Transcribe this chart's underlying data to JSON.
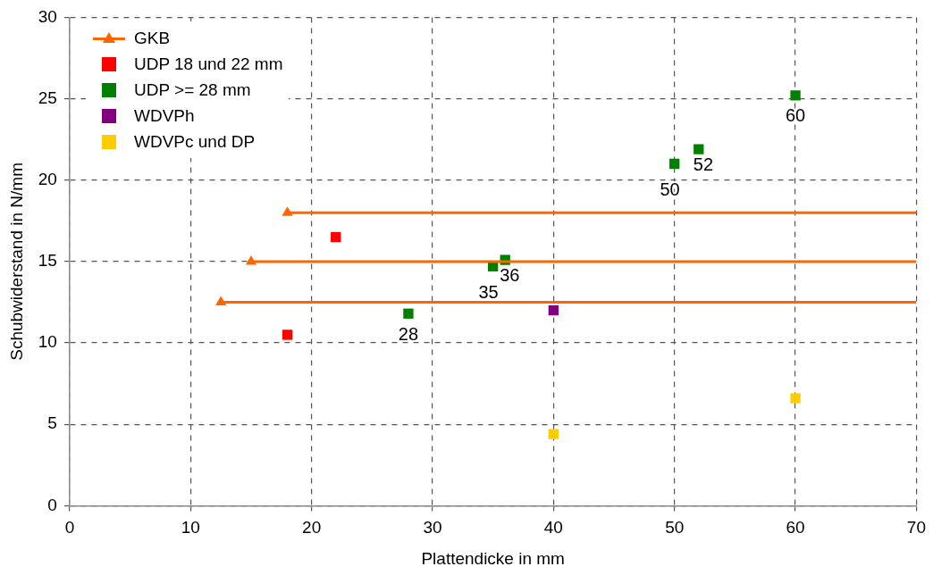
{
  "chart_data": {
    "type": "scatter",
    "xlabel": "Plattendicke in mm",
    "ylabel": "Schubwiderstand in N/mm",
    "xlim": [
      0,
      70
    ],
    "xticks": [
      0,
      10,
      20,
      30,
      40,
      50,
      60,
      70
    ],
    "ylim": [
      0,
      30
    ],
    "yticks": [
      0,
      5,
      10,
      15,
      20,
      25,
      30
    ],
    "grid": true,
    "legend": "top left",
    "annotations": [
      {
        "text": "28",
        "x": 28,
        "y": 11.8
      },
      {
        "text": "35",
        "x": 35,
        "y": 14.7
      },
      {
        "text": "36",
        "x": 36,
        "y": 15.1
      },
      {
        "text": "50",
        "x": 50,
        "y": 21.0
      },
      {
        "text": "52",
        "x": 52,
        "y": 21.9
      },
      {
        "text": "60",
        "x": 60,
        "y": 25.2
      }
    ],
    "marker": "square",
    "series": [
      {
        "name": "GKB",
        "type": "line",
        "marker": "triangle",
        "color": "#ff6600",
        "x": [
          12.5,
          70
        ],
        "values": [
          12.5,
          12.5
        ]
      },
      {
        "type": "line",
        "marker": "triangle",
        "color": "#ff6600",
        "x": [
          15,
          70
        ],
        "values": [
          15,
          15
        ]
      },
      {
        "type": "line",
        "marker": "triangle",
        "color": "#ff6600",
        "x": [
          18,
          70
        ],
        "values": [
          18,
          18
        ]
      },
      {
        "name": "UDP 18 und 22 mm",
        "color": "#ff0000",
        "x": [
          18,
          22
        ],
        "values": [
          10.5,
          16.5
        ]
      },
      {
        "name": "UDP >= 28 mm",
        "color": "#008000",
        "x": [
          28,
          35,
          36,
          50,
          52,
          60
        ],
        "values": [
          11.8,
          14.7,
          15.1,
          21.0,
          21.9,
          25.2
        ]
      },
      {
        "name": "WDVPh",
        "color": "#800080",
        "x": [
          40
        ],
        "values": [
          12.0
        ]
      },
      {
        "name": "WDVPc und DP",
        "color": "#ffcc00",
        "x": [
          40,
          60
        ],
        "values": [
          4.4,
          6.6
        ]
      }
    ]
  }
}
